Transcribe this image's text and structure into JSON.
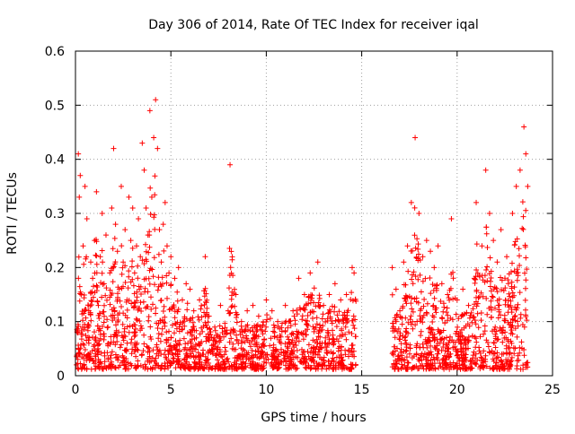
{
  "chart_data": {
    "type": "scatter",
    "title": "Day 306 of 2014, Rate Of TEC Index for receiver iqal",
    "xlabel": "GPS time / hours",
    "ylabel": "ROTI / TECUs",
    "xlim": [
      0,
      25
    ],
    "ylim": [
      0,
      0.6
    ],
    "grid": true,
    "marker": "+",
    "marker_color": "#ff0000",
    "x_ticks": [
      0,
      5,
      10,
      15,
      20,
      25
    ],
    "x_tick_labels": [
      "0",
      "5",
      "10",
      "15",
      "20",
      "25"
    ],
    "y_ticks": [
      0,
      0.1,
      0.2,
      0.3,
      0.4,
      0.5,
      0.6
    ],
    "y_tick_labels": [
      "0",
      "0.1",
      "0.2",
      "0.3",
      "0.4",
      "0.5",
      "0.6"
    ],
    "data_gap_hours": [
      14.7,
      16.6
    ],
    "series": [
      {
        "name": "ROTI",
        "points": [
          [
            0.05,
            0.02
          ],
          [
            0.1,
            0.08
          ],
          [
            0.15,
            0.41
          ],
          [
            0.2,
            0.33
          ],
          [
            0.25,
            0.37
          ],
          [
            0.3,
            0.15
          ],
          [
            0.4,
            0.24
          ],
          [
            0.5,
            0.35
          ],
          [
            0.6,
            0.29
          ],
          [
            0.7,
            0.12
          ],
          [
            0.8,
            0.21
          ],
          [
            0.9,
            0.18
          ],
          [
            1.0,
            0.25
          ],
          [
            1.1,
            0.34
          ],
          [
            1.2,
            0.13
          ],
          [
            1.3,
            0.22
          ],
          [
            1.4,
            0.3
          ],
          [
            1.5,
            0.17
          ],
          [
            1.6,
            0.26
          ],
          [
            1.7,
            0.09
          ],
          [
            1.8,
            0.19
          ],
          [
            1.9,
            0.31
          ],
          [
            2.0,
            0.42
          ],
          [
            2.1,
            0.28
          ],
          [
            2.2,
            0.23
          ],
          [
            2.3,
            0.16
          ],
          [
            2.4,
            0.35
          ],
          [
            2.5,
            0.21
          ],
          [
            2.6,
            0.27
          ],
          [
            2.7,
            0.14
          ],
          [
            2.8,
            0.33
          ],
          [
            2.9,
            0.25
          ],
          [
            3.0,
            0.31
          ],
          [
            3.1,
            0.19
          ],
          [
            3.2,
            0.24
          ],
          [
            3.3,
            0.29
          ],
          [
            3.4,
            0.22
          ],
          [
            3.5,
            0.43
          ],
          [
            3.6,
            0.38
          ],
          [
            3.7,
            0.31
          ],
          [
            3.8,
            0.26
          ],
          [
            3.9,
            0.49
          ],
          [
            4.0,
            0.33
          ],
          [
            4.1,
            0.44
          ],
          [
            4.2,
            0.51
          ],
          [
            4.3,
            0.42
          ],
          [
            4.4,
            0.27
          ],
          [
            4.5,
            0.21
          ],
          [
            4.6,
            0.28
          ],
          [
            4.7,
            0.32
          ],
          [
            4.8,
            0.24
          ],
          [
            4.9,
            0.19
          ],
          [
            5.0,
            0.22
          ],
          [
            5.2,
            0.18
          ],
          [
            5.4,
            0.2
          ],
          [
            5.6,
            0.14
          ],
          [
            5.8,
            0.17
          ],
          [
            6.0,
            0.16
          ],
          [
            6.2,
            0.12
          ],
          [
            6.5,
            0.14
          ],
          [
            6.8,
            0.22
          ],
          [
            7.0,
            0.11
          ],
          [
            7.3,
            0.09
          ],
          [
            7.6,
            0.13
          ],
          [
            8.0,
            0.12
          ],
          [
            8.1,
            0.39
          ],
          [
            8.4,
            0.15
          ],
          [
            8.7,
            0.1
          ],
          [
            9.0,
            0.12
          ],
          [
            9.3,
            0.13
          ],
          [
            9.6,
            0.11
          ],
          [
            10.0,
            0.14
          ],
          [
            10.3,
            0.12
          ],
          [
            10.6,
            0.1
          ],
          [
            11.0,
            0.13
          ],
          [
            11.4,
            0.12
          ],
          [
            11.7,
            0.18
          ],
          [
            12.0,
            0.15
          ],
          [
            12.3,
            0.19
          ],
          [
            12.7,
            0.21
          ],
          [
            13.0,
            0.13
          ],
          [
            13.3,
            0.15
          ],
          [
            13.6,
            0.17
          ],
          [
            13.9,
            0.14
          ],
          [
            14.2,
            0.15
          ],
          [
            14.5,
            0.2
          ],
          [
            14.6,
            0.19
          ],
          [
            16.6,
            0.2
          ],
          [
            16.8,
            0.16
          ],
          [
            17.0,
            0.12
          ],
          [
            17.2,
            0.21
          ],
          [
            17.4,
            0.24
          ],
          [
            17.6,
            0.32
          ],
          [
            17.8,
            0.44
          ],
          [
            18.0,
            0.3
          ],
          [
            18.2,
            0.22
          ],
          [
            18.4,
            0.25
          ],
          [
            18.6,
            0.23
          ],
          [
            18.8,
            0.2
          ],
          [
            19.0,
            0.24
          ],
          [
            19.2,
            0.17
          ],
          [
            19.5,
            0.15
          ],
          [
            19.7,
            0.29
          ],
          [
            20.0,
            0.14
          ],
          [
            20.3,
            0.16
          ],
          [
            20.6,
            0.13
          ],
          [
            20.9,
            0.18
          ],
          [
            21.0,
            0.32
          ],
          [
            21.3,
            0.24
          ],
          [
            21.5,
            0.38
          ],
          [
            21.7,
            0.3
          ],
          [
            21.9,
            0.25
          ],
          [
            22.1,
            0.21
          ],
          [
            22.3,
            0.27
          ],
          [
            22.6,
            0.22
          ],
          [
            22.9,
            0.3
          ],
          [
            23.1,
            0.35
          ],
          [
            23.3,
            0.38
          ],
          [
            23.5,
            0.46
          ],
          [
            23.6,
            0.41
          ],
          [
            23.7,
            0.35
          ]
        ]
      }
    ]
  }
}
